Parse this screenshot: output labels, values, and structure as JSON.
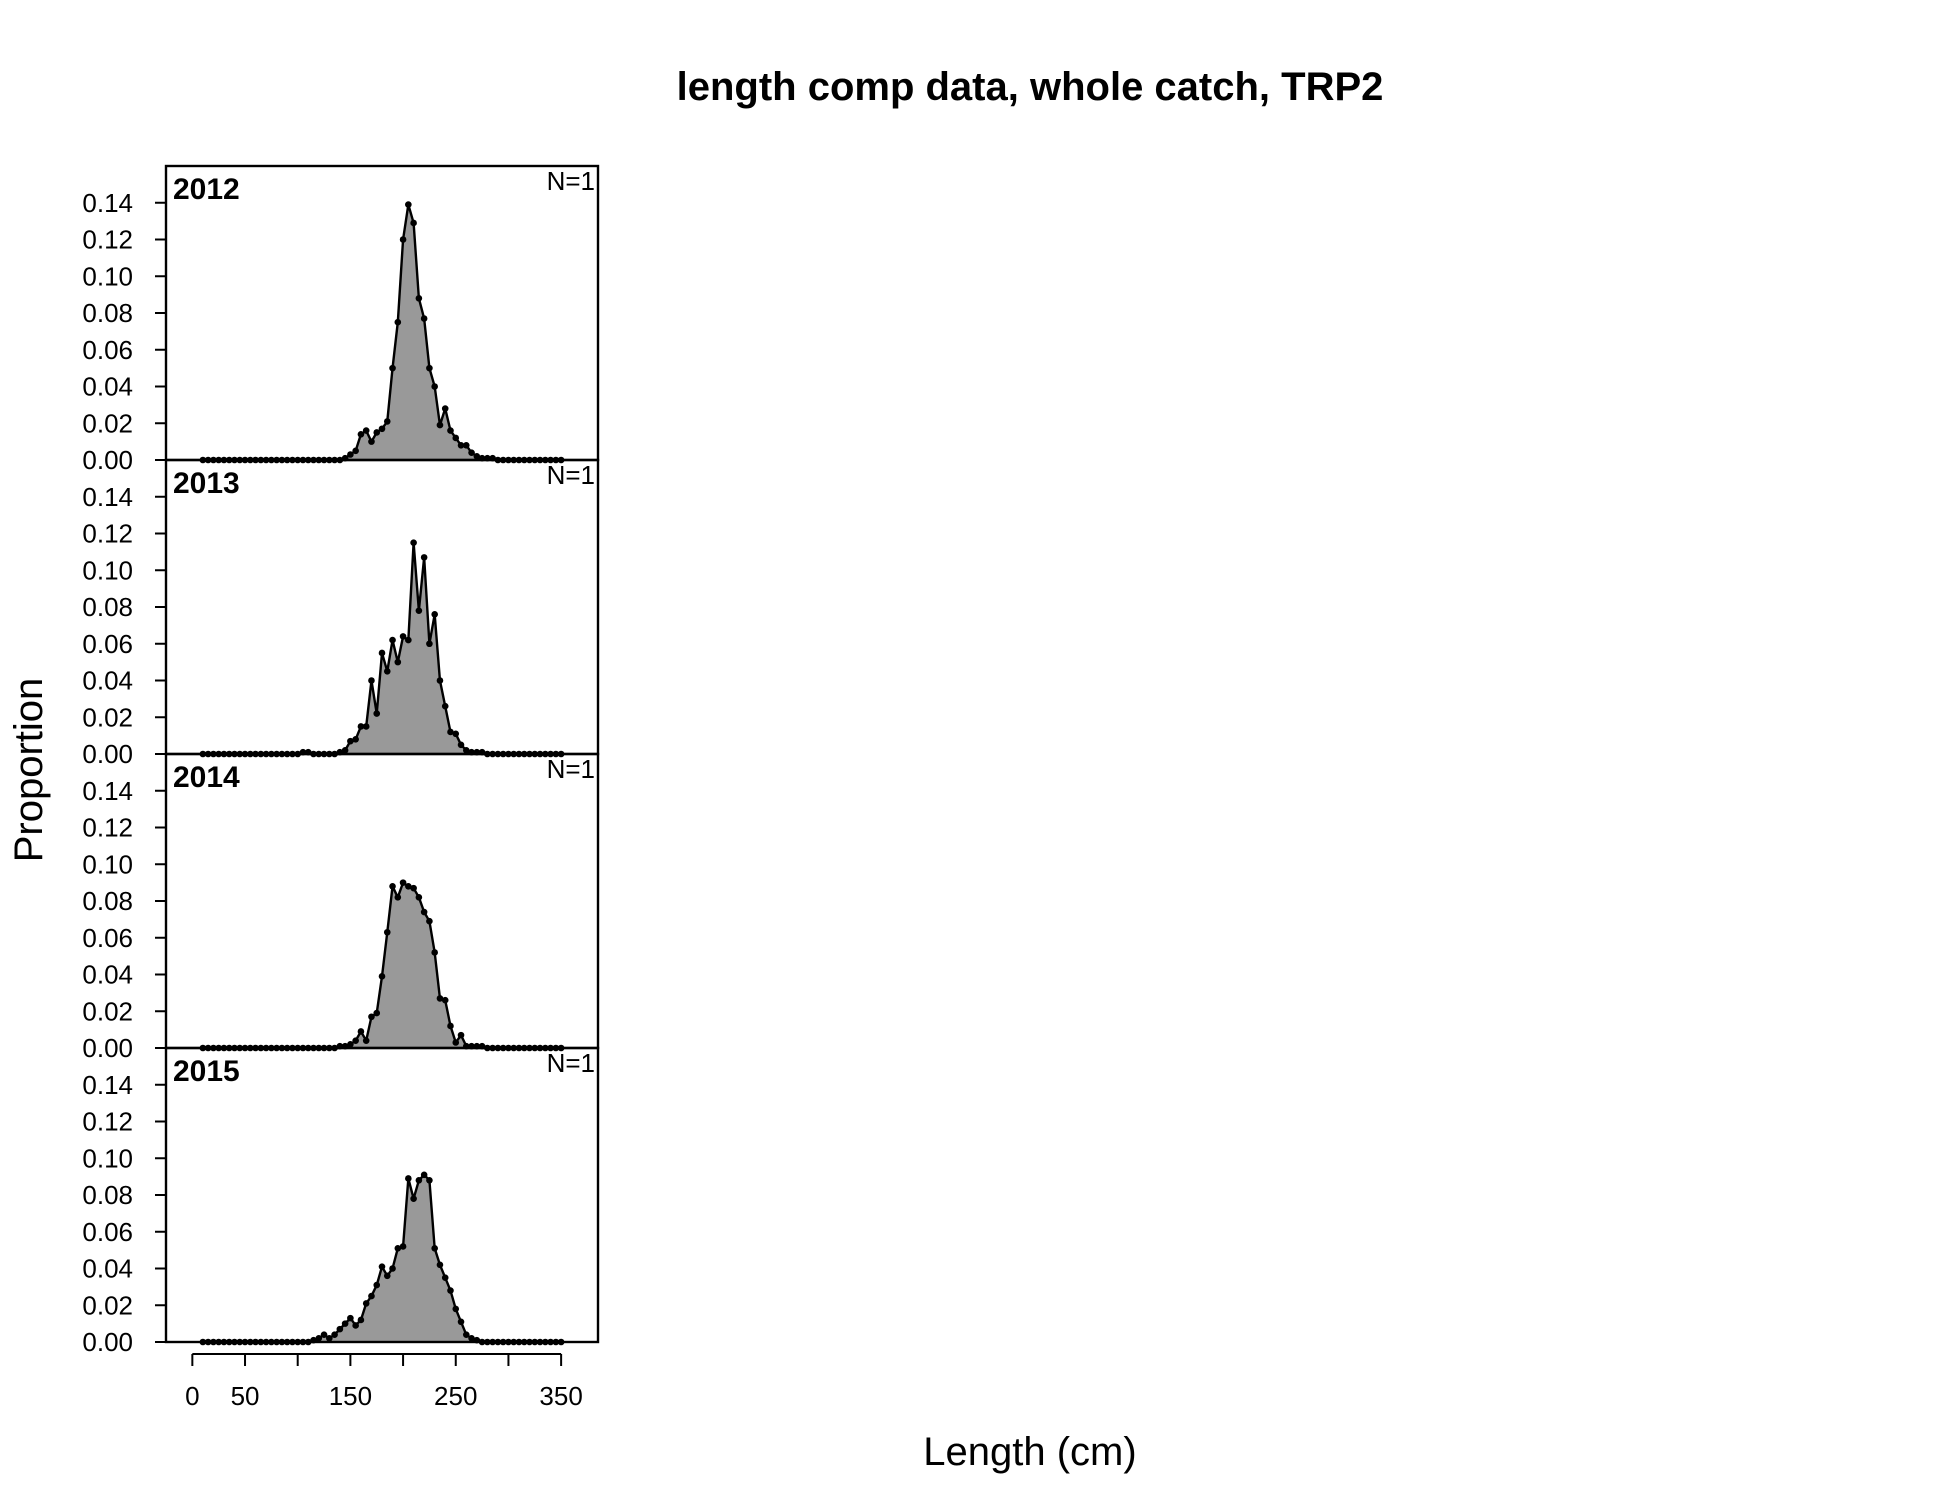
{
  "chart_data": {
    "type": "area",
    "title": "length comp data, whole catch, TRP2",
    "xlabel": "Length (cm)",
    "ylabel": "Proportion",
    "xlim": [
      -25,
      385
    ],
    "ylim": [
      0,
      0.16
    ],
    "x_ticks": [
      0,
      50,
      100,
      150,
      200,
      250,
      300,
      350
    ],
    "x_tick_labels": [
      "0",
      "50",
      "",
      "150",
      "",
      "250",
      "",
      "350"
    ],
    "y_ticks": [
      "0.00",
      "0.02",
      "0.04",
      "0.06",
      "0.08",
      "0.10",
      "0.12",
      "0.14"
    ],
    "fill_color": "#999999",
    "line_color": "#000000",
    "x": [
      10,
      15,
      20,
      25,
      30,
      35,
      40,
      45,
      50,
      55,
      60,
      65,
      70,
      75,
      80,
      85,
      90,
      95,
      100,
      105,
      110,
      115,
      120,
      125,
      130,
      135,
      140,
      145,
      150,
      155,
      160,
      165,
      170,
      175,
      180,
      185,
      190,
      195,
      200,
      205,
      210,
      215,
      220,
      225,
      230,
      235,
      240,
      245,
      250,
      255,
      260,
      265,
      270,
      275,
      280,
      285,
      290,
      295,
      300,
      305,
      310,
      315,
      320,
      325,
      330,
      335,
      340,
      345,
      350
    ],
    "panels": [
      {
        "year": "2012",
        "n_label": "N=1",
        "values": [
          0,
          0,
          0,
          0,
          0,
          0,
          0,
          0,
          0,
          0,
          0,
          0,
          0,
          0,
          0,
          0,
          0,
          0,
          0,
          0,
          0,
          0,
          0,
          0,
          0,
          0,
          0,
          0.001,
          0.003,
          0.005,
          0.014,
          0.016,
          0.01,
          0.015,
          0.017,
          0.021,
          0.05,
          0.075,
          0.12,
          0.139,
          0.129,
          0.088,
          0.077,
          0.05,
          0.04,
          0.019,
          0.028,
          0.016,
          0.012,
          0.008,
          0.008,
          0.004,
          0.002,
          0.001,
          0.001,
          0.001,
          0,
          0,
          0,
          0,
          0,
          0,
          0,
          0,
          0,
          0,
          0,
          0,
          0
        ]
      },
      {
        "year": "2013",
        "n_label": "N=1",
        "values": [
          0,
          0,
          0,
          0,
          0,
          0,
          0,
          0,
          0,
          0,
          0,
          0,
          0,
          0,
          0,
          0,
          0,
          0,
          0,
          0.001,
          0.001,
          0,
          0,
          0,
          0,
          0,
          0.001,
          0.002,
          0.007,
          0.008,
          0.015,
          0.015,
          0.04,
          0.022,
          0.055,
          0.045,
          0.062,
          0.05,
          0.064,
          0.062,
          0.115,
          0.078,
          0.107,
          0.06,
          0.076,
          0.04,
          0.026,
          0.012,
          0.011,
          0.005,
          0.002,
          0.001,
          0.001,
          0.001,
          0,
          0,
          0,
          0,
          0,
          0,
          0,
          0,
          0,
          0,
          0,
          0,
          0,
          0,
          0
        ]
      },
      {
        "year": "2014",
        "n_label": "N=1",
        "values": [
          0,
          0,
          0,
          0,
          0,
          0,
          0,
          0,
          0,
          0,
          0,
          0,
          0,
          0,
          0,
          0,
          0,
          0,
          0,
          0,
          0,
          0,
          0,
          0,
          0,
          0,
          0.001,
          0.001,
          0.002,
          0.004,
          0.009,
          0.004,
          0.017,
          0.019,
          0.039,
          0.063,
          0.088,
          0.082,
          0.09,
          0.088,
          0.087,
          0.082,
          0.074,
          0.069,
          0.052,
          0.027,
          0.026,
          0.012,
          0.003,
          0.007,
          0.001,
          0.001,
          0.001,
          0.001,
          0,
          0,
          0,
          0,
          0,
          0,
          0,
          0,
          0,
          0,
          0,
          0,
          0,
          0,
          0
        ]
      },
      {
        "year": "2015",
        "n_label": "N=1",
        "values": [
          0,
          0,
          0,
          0,
          0,
          0,
          0,
          0,
          0,
          0,
          0,
          0,
          0,
          0,
          0,
          0,
          0,
          0,
          0,
          0,
          0,
          0.001,
          0.002,
          0.004,
          0.002,
          0.004,
          0.007,
          0.01,
          0.013,
          0.009,
          0.012,
          0.021,
          0.025,
          0.031,
          0.041,
          0.036,
          0.04,
          0.051,
          0.052,
          0.089,
          0.078,
          0.088,
          0.091,
          0.088,
          0.051,
          0.042,
          0.035,
          0.028,
          0.018,
          0.011,
          0.004,
          0.002,
          0.001,
          0,
          0,
          0,
          0,
          0,
          0,
          0,
          0,
          0,
          0,
          0,
          0,
          0,
          0,
          0,
          0
        ]
      }
    ]
  }
}
